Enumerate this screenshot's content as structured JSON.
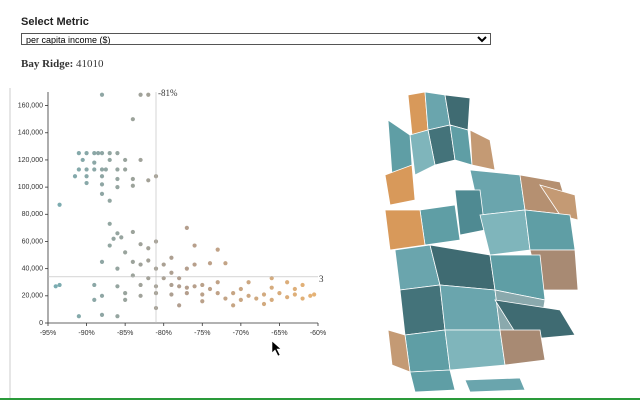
{
  "select_label": "Select Metric",
  "select_value": "per capita income ($)",
  "selection": {
    "name": "Bay Ridge:",
    "value": 41010
  },
  "chart_data": {
    "type": "scatter",
    "x": [
      -91,
      -90,
      -89,
      -88.5,
      -88,
      -87,
      -86,
      -90.5,
      -89,
      -87,
      -85,
      -83,
      -91,
      -90,
      -89,
      -88,
      -87.5,
      -86,
      -85,
      -91.5,
      -90,
      -88,
      -86,
      -84,
      -82,
      -81,
      -90,
      -88,
      -86,
      -84,
      -88,
      -87,
      -93.5,
      -88,
      -83,
      -82,
      -84,
      -87,
      -86,
      -85.5,
      -86.5,
      -84,
      -87,
      -85,
      -83,
      -82,
      -77,
      -88,
      -86,
      -84,
      -83,
      -82,
      -81,
      -84,
      -82,
      -80,
      -89,
      -86,
      -83,
      -81,
      -79,
      -78,
      -77,
      -76,
      -75,
      -94,
      -93.5,
      -88,
      -85,
      -83,
      -81,
      -79,
      -77,
      -75,
      -73,
      -71,
      -69,
      -67,
      -65,
      -63,
      -61,
      -72,
      -70,
      -68,
      -66,
      -64,
      -62,
      -74,
      -70,
      -66,
      -63,
      -60.5,
      -64,
      -69,
      -73,
      -78,
      -76,
      -74,
      -72,
      -79,
      -80,
      -88,
      -86,
      -91,
      -81,
      -78,
      -85,
      -89,
      -79,
      -81,
      -76,
      -73,
      -77,
      -66,
      -62,
      -67,
      -71,
      -75
    ],
    "y": [
      125000,
      125000,
      125000,
      125000,
      125000,
      125000,
      125000,
      120000,
      118000,
      120000,
      120000,
      120000,
      113000,
      113000,
      113000,
      113000,
      113000,
      113000,
      113000,
      108000,
      108000,
      108000,
      106000,
      106000,
      105000,
      108000,
      103000,
      102000,
      100000,
      101000,
      95000,
      90000,
      87000,
      168000,
      168000,
      168000,
      150000,
      73000,
      66000,
      63000,
      62000,
      67000,
      57000,
      52000,
      58000,
      55000,
      70000,
      45000,
      40000,
      45000,
      43000,
      46000,
      40000,
      35000,
      33000,
      33000,
      28000,
      27000,
      28000,
      27000,
      28000,
      27000,
      26000,
      27000,
      28000,
      27000,
      28000,
      20000,
      22000,
      20000,
      22000,
      21000,
      22000,
      21000,
      22000,
      22000,
      20000,
      21000,
      22000,
      21000,
      20000,
      18000,
      17000,
      18000,
      17000,
      19000,
      18000,
      25000,
      25000,
      26000,
      25000,
      21000,
      30000,
      30000,
      30000,
      33000,
      43000,
      44000,
      44000,
      37000,
      43000,
      6000,
      5000,
      5000,
      11000,
      13000,
      17000,
      17000,
      48000,
      60000,
      57000,
      54000,
      40000,
      33000,
      28000,
      14000,
      13000,
      16000
    ],
    "colors": [
      "#5f9ea5",
      "#a58c7a",
      "#e3a55c"
    ],
    "xlim": [
      -95,
      -60
    ],
    "ylim": [
      0,
      170000
    ],
    "xticks": [
      {
        "value": -95,
        "label": "-95%"
      },
      {
        "value": -90,
        "label": "-90%"
      },
      {
        "value": -85,
        "label": "-85%"
      },
      {
        "value": -80,
        "label": "-80%"
      },
      {
        "value": -75,
        "label": "-75%"
      },
      {
        "value": -70,
        "label": "-70%"
      },
      {
        "value": -65,
        "label": "-65%"
      },
      {
        "value": -60,
        "label": "-60%"
      }
    ],
    "yticks": [
      0,
      {
        "value": 20000,
        "label": "20,000"
      },
      {
        "value": 40000,
        "label": "40,000"
      },
      {
        "value": 60000,
        "label": "60,000"
      },
      {
        "value": 80000,
        "label": "80,000"
      },
      {
        "value": 100000,
        "label": "100,000"
      },
      {
        "value": 120000,
        "label": "120,000"
      },
      {
        "value": 140000,
        "label": "140,000"
      },
      {
        "value": 160000,
        "label": "160,000"
      }
    ],
    "crosshair": {
      "x": {
        "value": -81,
        "label": "-81%"
      },
      "y": {
        "value": 34000,
        "label": "3"
      }
    }
  }
}
